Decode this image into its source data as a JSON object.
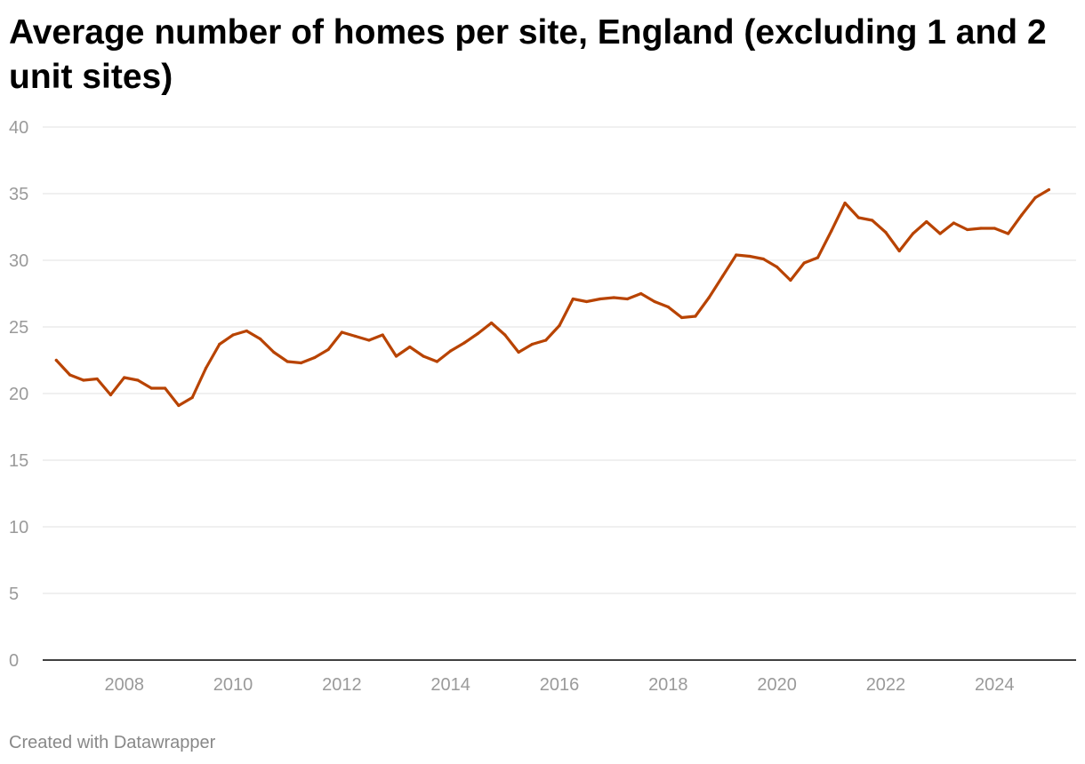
{
  "chart_data": {
    "type": "line",
    "title": "Average number of homes per site, England (excluding 1 and 2 unit sites)",
    "xlabel": "",
    "ylabel": "",
    "ylim": [
      0,
      40
    ],
    "yticks": [
      0,
      5,
      10,
      15,
      20,
      25,
      30,
      35,
      40
    ],
    "xlim": [
      2006.5,
      2025.5
    ],
    "xticks": [
      2008,
      2010,
      2012,
      2014,
      2016,
      2018,
      2020,
      2022,
      2024
    ],
    "grid": true,
    "line_color": "#b84300",
    "series": [
      {
        "name": "Average number of homes per site",
        "x": [
          2006.75,
          2007.0,
          2007.25,
          2007.5,
          2007.75,
          2008.0,
          2008.25,
          2008.5,
          2008.75,
          2009.0,
          2009.25,
          2009.5,
          2009.75,
          2010.0,
          2010.25,
          2010.5,
          2010.75,
          2011.0,
          2011.25,
          2011.5,
          2011.75,
          2012.0,
          2012.25,
          2012.5,
          2012.75,
          2013.0,
          2013.25,
          2013.5,
          2013.75,
          2014.0,
          2014.25,
          2014.5,
          2014.75,
          2015.0,
          2015.25,
          2015.5,
          2015.75,
          2016.0,
          2016.25,
          2016.5,
          2016.75,
          2017.0,
          2017.25,
          2017.5,
          2017.75,
          2018.0,
          2018.25,
          2018.5,
          2018.75,
          2019.0,
          2019.25,
          2019.5,
          2019.75,
          2020.0,
          2020.25,
          2020.5,
          2020.75,
          2021.0,
          2021.25,
          2021.5,
          2021.75,
          2022.0,
          2022.25,
          2022.5,
          2022.75,
          2023.0,
          2023.25,
          2023.5,
          2023.75,
          2024.0,
          2024.25,
          2024.5,
          2024.75,
          2025.0
        ],
        "values": [
          22.5,
          21.4,
          21.0,
          21.1,
          19.9,
          21.2,
          21.0,
          20.4,
          20.4,
          19.1,
          19.7,
          21.9,
          23.7,
          24.4,
          24.7,
          24.1,
          23.1,
          22.4,
          22.3,
          22.7,
          23.3,
          24.6,
          24.3,
          24.0,
          24.4,
          22.8,
          23.5,
          22.8,
          22.4,
          23.2,
          23.8,
          24.5,
          25.3,
          24.4,
          23.1,
          23.7,
          24.0,
          25.1,
          27.1,
          26.9,
          27.1,
          27.2,
          27.1,
          27.5,
          26.9,
          26.5,
          25.7,
          25.8,
          27.2,
          28.8,
          30.4,
          30.3,
          30.1,
          29.5,
          28.5,
          29.8,
          30.2,
          32.2,
          34.3,
          33.2,
          33.0,
          32.1,
          30.7,
          32.0,
          32.9,
          32.0,
          32.8,
          32.3,
          32.4,
          32.4,
          32.0,
          33.4,
          34.7,
          35.3
        ]
      }
    ]
  },
  "footer": {
    "credit": "Created with Datawrapper"
  }
}
